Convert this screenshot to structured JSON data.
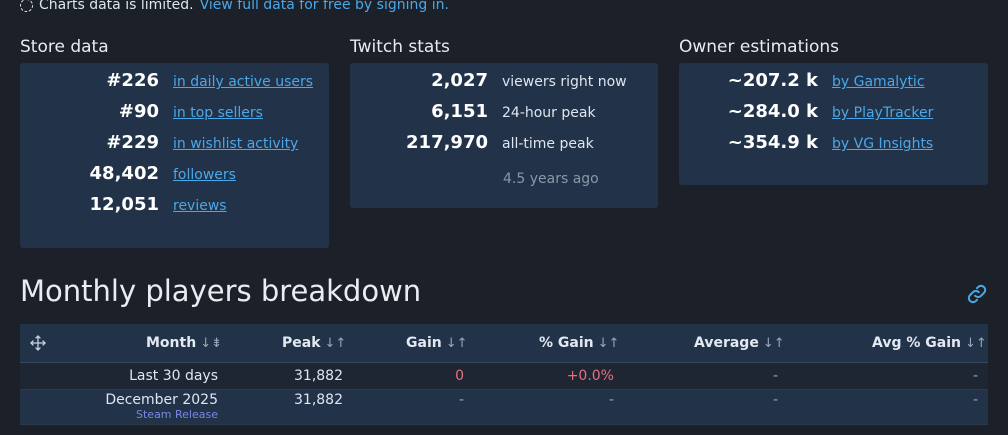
{
  "notice": {
    "text": "Charts data is limited.",
    "link": "View full data for free by signing in."
  },
  "store": {
    "title": "Store data",
    "rows": [
      {
        "value": "#226",
        "label": "in daily active users"
      },
      {
        "value": "#90",
        "label": "in top sellers"
      },
      {
        "value": "#229",
        "label": "in wishlist activity"
      },
      {
        "value": "48,402",
        "label": "followers"
      },
      {
        "value": "12,051",
        "label": "reviews"
      }
    ]
  },
  "twitch": {
    "title": "Twitch stats",
    "rows": [
      {
        "value": "2,027",
        "label": "viewers right now"
      },
      {
        "value": "6,151",
        "label": "24-hour peak"
      },
      {
        "value": "217,970",
        "label": "all-time peak"
      }
    ],
    "alltime_ago": "4.5 years ago"
  },
  "owners": {
    "title": "Owner estimations",
    "rows": [
      {
        "value": "~207.2 k",
        "label": "by Gamalytic"
      },
      {
        "value": "~284.0 k",
        "label": "by PlayTracker"
      },
      {
        "value": "~354.9 k",
        "label": "by VG Insights"
      }
    ]
  },
  "monthly": {
    "title": "Monthly players breakdown",
    "columns": {
      "month": "Month",
      "peak": "Peak",
      "gain": "Gain",
      "pct_gain": "% Gain",
      "average": "Average",
      "avg_pct_gain": "Avg % Gain"
    },
    "sort_glyph": "↓↑",
    "month_sort_glyph": "↓⇟",
    "rows": [
      {
        "month": "Last 30 days",
        "peak": "31,882",
        "gain": "0",
        "pct_gain": "+0.0%",
        "average": "-",
        "avg_pct_gain": "-"
      },
      {
        "month": "December 2025",
        "tag": "Steam Release",
        "peak": "31,882",
        "gain": "-",
        "pct_gain": "-",
        "average": "-",
        "avg_pct_gain": "-"
      }
    ]
  },
  "colors": {
    "accent": "#4aa8e8",
    "card_bg": "#223249",
    "page_bg": "#1b2029",
    "negative": "#e8707a",
    "release_tag": "#7b86e6"
  }
}
